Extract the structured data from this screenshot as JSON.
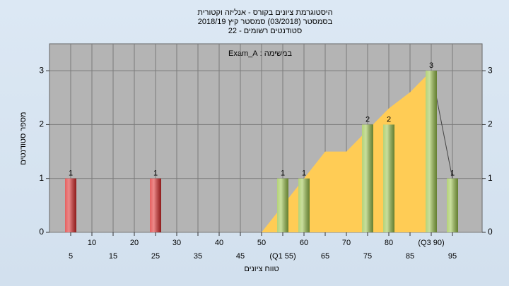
{
  "chart_data": {
    "type": "bar",
    "title": "היסטוגרמת ציונים בקורס - אנליזה וקטורית",
    "subtitle": "בסמסטר  (03/2018)  סמסטר קיץ 2018/19",
    "subtitle2": "סטודנטים רשומים - 22",
    "annotation": "במשימה : Exam_A",
    "x_label": "טווח ציונים",
    "y_label": "מספר סטודנטים",
    "xlim": [
      0,
      102
    ],
    "xticks": [
      5,
      10,
      15,
      20,
      25,
      30,
      35,
      40,
      45,
      50,
      {
        "value": 55,
        "label": "(Q1 55)"
      },
      60,
      65,
      70,
      75,
      80,
      85,
      {
        "value": 90,
        "label": "(Q3 90)"
      },
      95
    ],
    "ylim": [
      0,
      3.5
    ],
    "yticks": [
      0,
      1,
      2,
      3
    ],
    "y2lim": [
      0,
      3.5
    ],
    "y2ticks": [
      0,
      1,
      2,
      3
    ],
    "grid": true,
    "area": {
      "color": "#ffcc55",
      "x": [
        50,
        55,
        60,
        65,
        70,
        75,
        80,
        85,
        90,
        95
      ],
      "values": [
        0,
        0.5,
        1,
        1.5,
        1.5,
        1.9,
        2.3,
        2.6,
        3,
        1
      ]
    },
    "series": [
      {
        "color": "#dd2b2b",
        "x": [
          5,
          25
        ],
        "values": [
          1,
          1
        ]
      },
      {
        "color": "#9cc44c",
        "x": [
          55,
          60,
          75,
          80,
          90,
          95
        ],
        "values": [
          1,
          1,
          2,
          2,
          3,
          1
        ]
      }
    ]
  }
}
